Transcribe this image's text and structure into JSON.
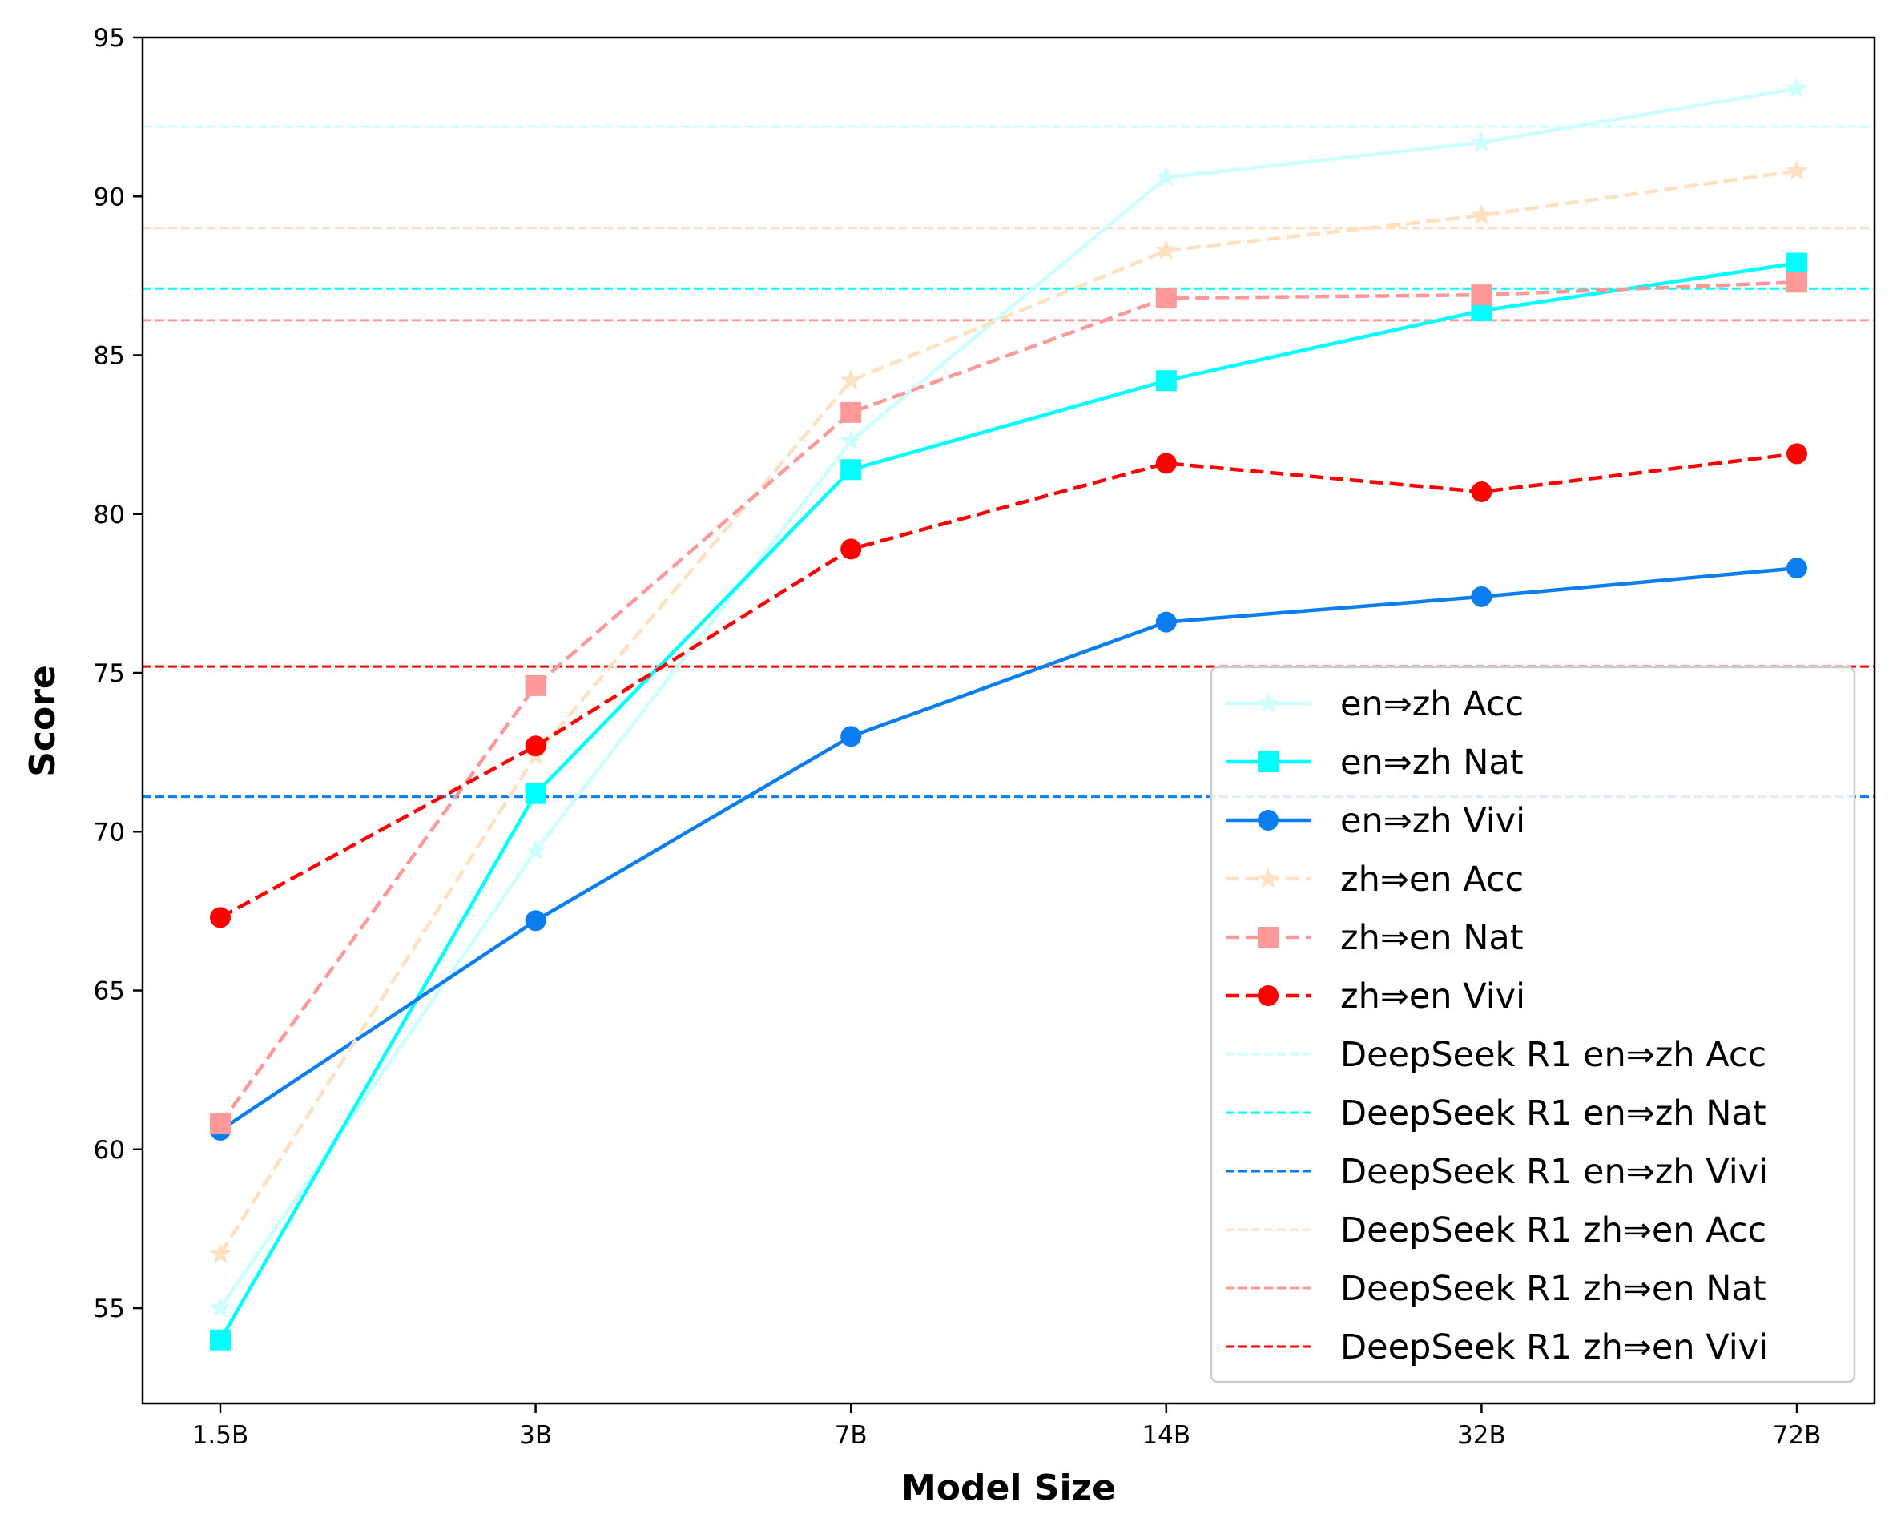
{
  "chart_data": {
    "type": "line",
    "title": "",
    "xlabel": "Model Size",
    "ylabel": "Score",
    "categories": [
      "1.5B",
      "3B",
      "7B",
      "14B",
      "32B",
      "72B"
    ],
    "ylim": [
      52,
      95
    ],
    "yticks": [
      55,
      60,
      65,
      70,
      75,
      80,
      85,
      90,
      95
    ],
    "grid": false,
    "legend_position": "lower-right",
    "series": [
      {
        "name": "en⇒zh Acc",
        "color": "#ccffff",
        "linestyle": "solid",
        "marker": "star",
        "values": [
          55.0,
          69.4,
          82.3,
          90.6,
          91.7,
          93.4
        ]
      },
      {
        "name": "en⇒zh Nat",
        "color": "#00ffff",
        "linestyle": "solid",
        "marker": "square",
        "values": [
          54.0,
          71.2,
          81.4,
          84.2,
          86.4,
          87.9
        ]
      },
      {
        "name": "en⇒zh Vivi",
        "color": "#0a7ef0",
        "linestyle": "solid",
        "marker": "circle",
        "values": [
          60.6,
          67.2,
          73.0,
          76.6,
          77.4,
          78.3
        ]
      },
      {
        "name": "zh⇒en Acc",
        "color": "#ffe0c0",
        "linestyle": "dashed",
        "marker": "star",
        "values": [
          56.7,
          72.4,
          84.2,
          88.3,
          89.4,
          90.8
        ]
      },
      {
        "name": "zh⇒en Nat",
        "color": "#ff9999",
        "linestyle": "dashed",
        "marker": "square",
        "values": [
          60.8,
          74.6,
          83.2,
          86.8,
          86.9,
          87.3
        ]
      },
      {
        "name": "zh⇒en Vivi",
        "color": "#ff0000",
        "linestyle": "dashed",
        "marker": "circle",
        "values": [
          67.3,
          72.7,
          78.9,
          81.6,
          80.7,
          81.9
        ]
      }
    ],
    "reference_lines": [
      {
        "name": "DeepSeek R1 en⇒zh Acc",
        "color": "#ccffff",
        "value": 92.2
      },
      {
        "name": "DeepSeek R1 en⇒zh Nat",
        "color": "#00ffff",
        "value": 87.1
      },
      {
        "name": "DeepSeek R1 en⇒zh Vivi",
        "color": "#0a7ef0",
        "value": 71.1
      },
      {
        "name": "DeepSeek R1 zh⇒en Acc",
        "color": "#ffe0c0",
        "value": 89.0
      },
      {
        "name": "DeepSeek R1 zh⇒en Nat",
        "color": "#ff9999",
        "value": 86.1
      },
      {
        "name": "DeepSeek R1 zh⇒en Vivi",
        "color": "#ff0000",
        "value": 75.2
      }
    ]
  }
}
